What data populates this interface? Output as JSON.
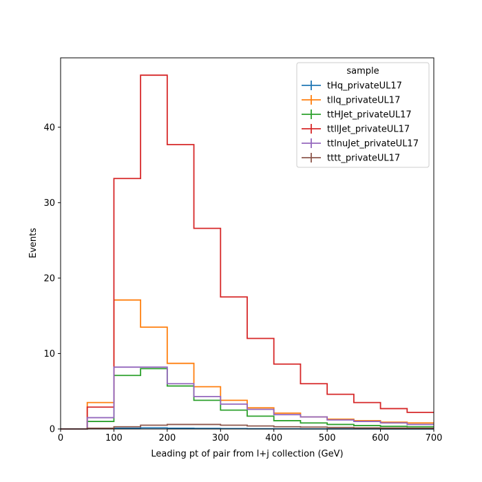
{
  "chart_data": {
    "type": "histogram-step",
    "xlabel": "Leading pt of pair from l+j collection (GeV)",
    "ylabel": "Events",
    "xlim": [
      0,
      700
    ],
    "ylim": [
      0,
      49.2
    ],
    "x_ticks": [
      0,
      100,
      200,
      300,
      400,
      500,
      600,
      700
    ],
    "y_ticks": [
      0,
      10,
      20,
      30,
      40
    ],
    "bin_edges": [
      0,
      50,
      100,
      150,
      200,
      250,
      300,
      350,
      400,
      450,
      500,
      550,
      600,
      650,
      700
    ],
    "legend": {
      "title": "sample",
      "position": "top-right"
    },
    "series": [
      {
        "name": "tHq_privateUL17",
        "color": "#1f77b4",
        "values": [
          0,
          0.05,
          0.1,
          0.15,
          0.1,
          0.08,
          0.05,
          0.03,
          0.02,
          0.01,
          0.01,
          0.01,
          0.005,
          0.005
        ]
      },
      {
        "name": "tllq_privateUL17",
        "color": "#ff7f0e",
        "values": [
          0,
          3.5,
          17.1,
          13.5,
          8.7,
          5.6,
          3.8,
          2.8,
          2.1,
          1.6,
          1.3,
          1.1,
          0.9,
          0.8
        ]
      },
      {
        "name": "ttHJet_privateUL17",
        "color": "#2ca02c",
        "values": [
          0,
          1.0,
          7.1,
          8.0,
          5.7,
          3.8,
          2.5,
          1.7,
          1.1,
          0.8,
          0.6,
          0.45,
          0.35,
          0.3
        ]
      },
      {
        "name": "ttllJet_privateUL17",
        "color": "#d62728",
        "values": [
          0,
          2.9,
          33.2,
          46.9,
          37.7,
          26.6,
          17.5,
          12.0,
          8.6,
          6.0,
          4.6,
          3.5,
          2.7,
          2.2
        ]
      },
      {
        "name": "ttlnuJet_privateUL17",
        "color": "#9467bd",
        "values": [
          0,
          1.5,
          8.2,
          8.2,
          6.0,
          4.3,
          3.3,
          2.6,
          1.9,
          1.6,
          1.2,
          1.0,
          0.8,
          0.6
        ]
      },
      {
        "name": "tttt_privateUL17",
        "color": "#8c564b",
        "values": [
          0,
          0.1,
          0.3,
          0.5,
          0.6,
          0.6,
          0.5,
          0.4,
          0.3,
          0.25,
          0.2,
          0.15,
          0.12,
          0.1
        ]
      }
    ]
  }
}
